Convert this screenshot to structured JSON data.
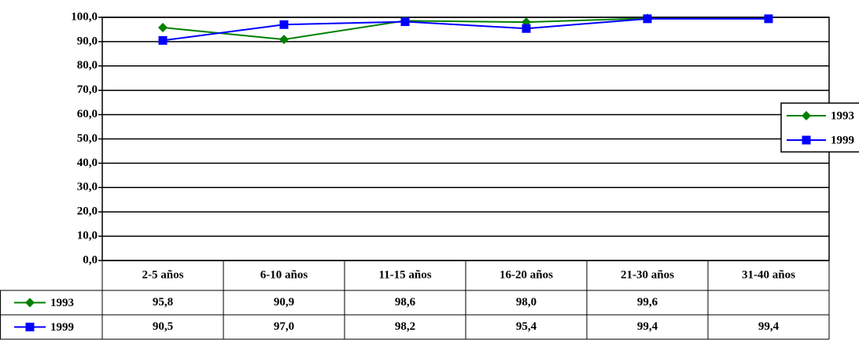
{
  "chart_data": {
    "type": "line",
    "categories": [
      "2-5 años",
      "6-10 años",
      "11-15 años",
      "16-20 años",
      "21-30 años",
      "31-40 años"
    ],
    "series": [
      {
        "name": "1993",
        "color": "#008000",
        "marker": "diamond",
        "values": [
          95.8,
          90.9,
          98.6,
          98.0,
          99.6,
          null
        ],
        "value_labels": [
          "95,8",
          "90,9",
          "98,6",
          "98,0",
          "99,6",
          null
        ]
      },
      {
        "name": "1999",
        "color": "#0000ff",
        "marker": "square",
        "values": [
          90.5,
          97.0,
          98.2,
          95.4,
          99.4,
          99.4
        ],
        "value_labels": [
          "90,5",
          "97,0",
          "98,2",
          "95,4",
          "99,4",
          "99,4"
        ]
      }
    ],
    "ylim": [
      0,
      100
    ],
    "yticks": [
      {
        "value": 0,
        "label": "0,0"
      },
      {
        "value": 10,
        "label": "10,0"
      },
      {
        "value": 20,
        "label": "20,0"
      },
      {
        "value": 30,
        "label": "30,0"
      },
      {
        "value": 40,
        "label": "40,0"
      },
      {
        "value": 50,
        "label": "50,0"
      },
      {
        "value": 60,
        "label": "60,0"
      },
      {
        "value": 70,
        "label": "70,0"
      },
      {
        "value": 80,
        "label": "80,0"
      },
      {
        "value": 90,
        "label": "90,0"
      },
      {
        "value": 100,
        "label": "100,0"
      }
    ],
    "grid": true,
    "legend": "right",
    "data_table": true
  }
}
